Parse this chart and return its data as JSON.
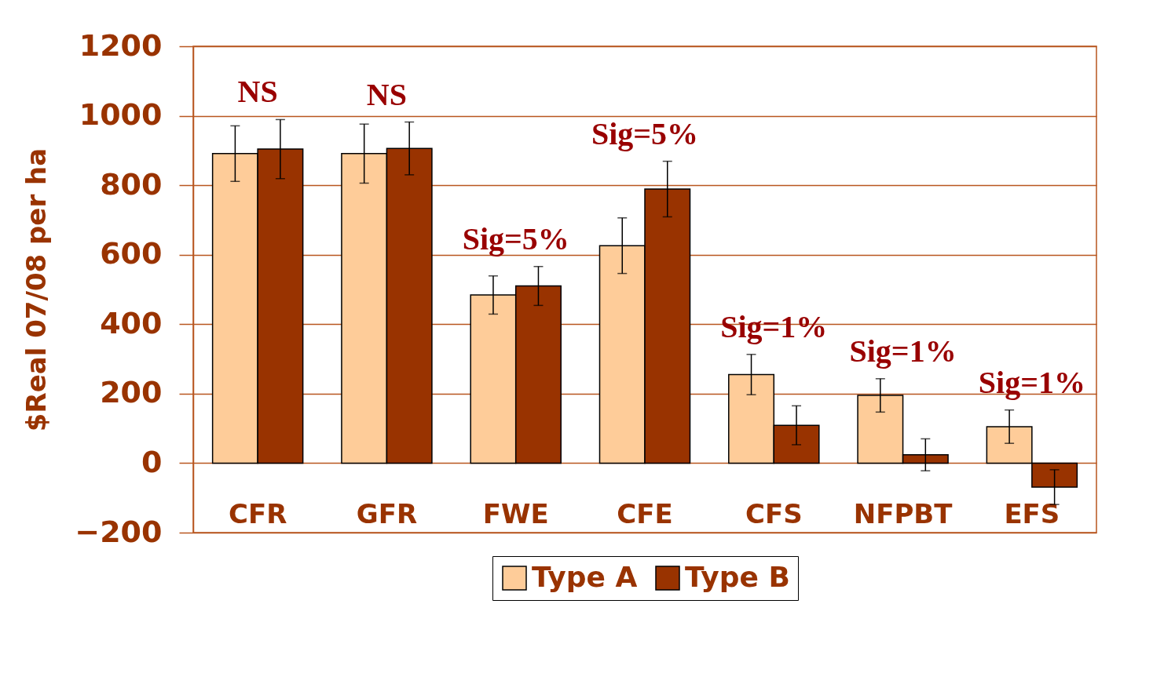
{
  "chart_data": {
    "type": "bar",
    "ylabel": "$Real 07/08 per ha",
    "categories": [
      "CFR",
      "GFR",
      "FWE",
      "CFE",
      "CFS",
      "NFPBT",
      "EFS"
    ],
    "series": [
      {
        "name": "Type A",
        "color": "#fecc99",
        "values": [
          891,
          891,
          484,
          626,
          255,
          195,
          105
        ],
        "errors": [
          80,
          85,
          55,
          80,
          58,
          48,
          48
        ]
      },
      {
        "name": "Type B",
        "color": "#993300",
        "values": [
          904,
          906,
          510,
          789,
          109,
          24,
          -69
        ],
        "errors": [
          85,
          76,
          56,
          80,
          56,
          46,
          50
        ]
      }
    ],
    "ylim": [
      -200,
      1200
    ],
    "yticks": [
      -200,
      0,
      200,
      400,
      600,
      800,
      1000,
      1200
    ],
    "grid": "y",
    "legend": "bottom",
    "annotations": [
      "NS",
      "NS",
      "Sig=5%",
      "Sig=5%",
      "Sig=1%",
      "Sig=1%",
      "Sig=1%"
    ]
  }
}
